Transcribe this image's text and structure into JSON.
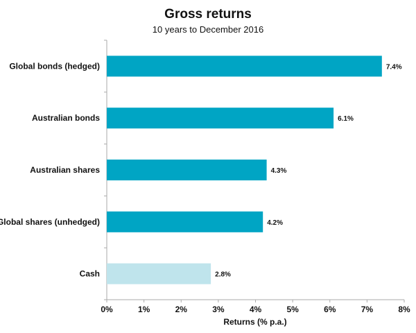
{
  "chart_data": {
    "type": "bar",
    "orientation": "horizontal",
    "title": "Gross returns",
    "subtitle": "10 years to December 2016",
    "xlabel": "Returns (% p.a.)",
    "ylabel": "",
    "xlim": [
      0,
      8
    ],
    "x_ticks": [
      "0%",
      "1%",
      "2%",
      "3%",
      "4%",
      "5%",
      "6%",
      "7%",
      "8%"
    ],
    "grid": false,
    "legend": "none",
    "categories": [
      "Global bonds (hedged)",
      "Australian bonds",
      "Australian shares",
      "Global shares (unhedged)",
      "Cash"
    ],
    "values": [
      7.4,
      6.1,
      4.3,
      4.2,
      2.8
    ],
    "data_labels": [
      "7.4%",
      "6.1%",
      "4.3%",
      "4.2%",
      "2.8%"
    ],
    "colors": [
      "#00a5c4",
      "#00a5c4",
      "#00a5c4",
      "#00a5c4",
      "#bfe4ec"
    ]
  }
}
